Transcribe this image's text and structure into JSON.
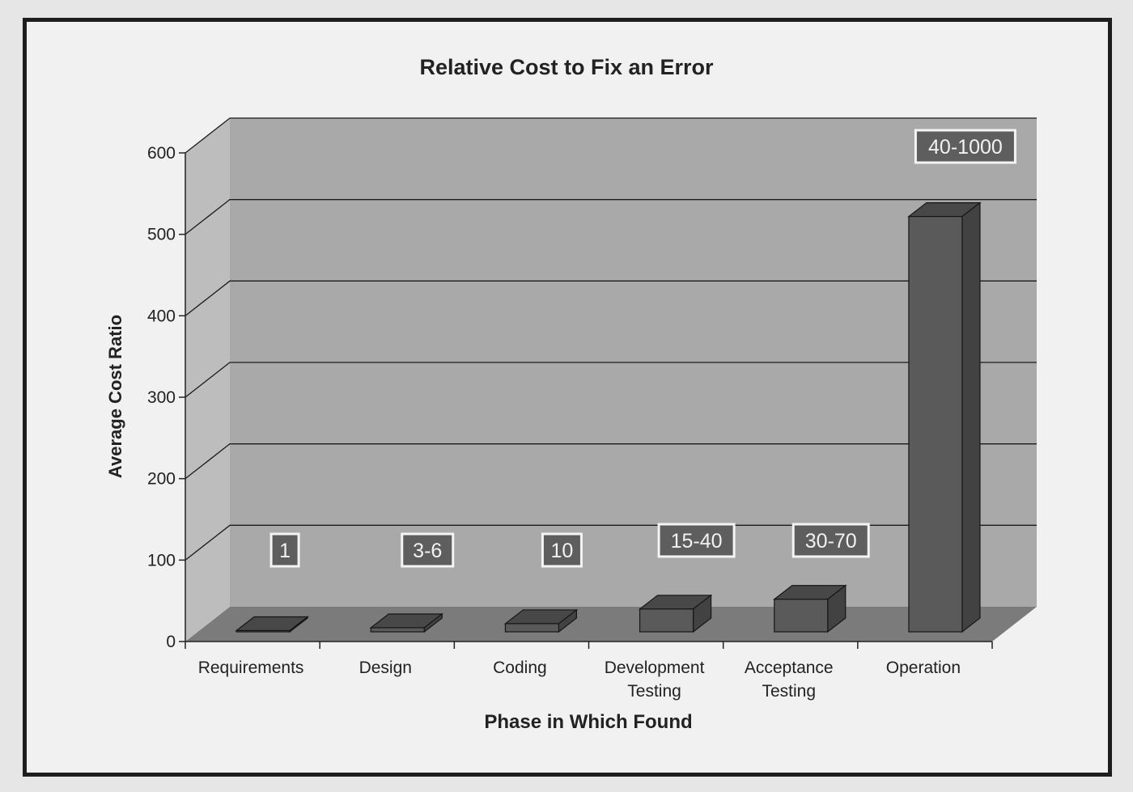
{
  "chart_data": {
    "type": "bar",
    "title": "Relative Cost to Fix an Error",
    "xlabel": "Phase in Which Found",
    "ylabel": "Average Cost Ratio",
    "ylim": [
      0,
      600
    ],
    "yticks": [
      0,
      100,
      200,
      300,
      400,
      500,
      600
    ],
    "grid": true,
    "categories": [
      [
        "Requirements"
      ],
      [
        "Design"
      ],
      [
        "Coding"
      ],
      [
        "Development",
        "Testing"
      ],
      [
        "Acceptance",
        "Testing"
      ],
      [
        "Operation"
      ]
    ],
    "values": [
      1,
      5,
      10,
      28,
      40,
      510
    ],
    "data_labels": [
      "1",
      "3-6",
      "10",
      "15-40",
      "30-70",
      "40-1000"
    ]
  },
  "colors": {
    "page_background": "#e6e6e6",
    "frame_background": "#f1f1f1",
    "frame_border": "#1e1e1e",
    "plot_wall": "#a9a9a9",
    "plot_side_wall": "#bdbdbd",
    "floor": "#7b7b7b",
    "bar_front": "#5a5a5a",
    "bar_top": "#484848",
    "bar_side": "#424242",
    "label_background": "#5e5e5e",
    "text": "#222222"
  }
}
